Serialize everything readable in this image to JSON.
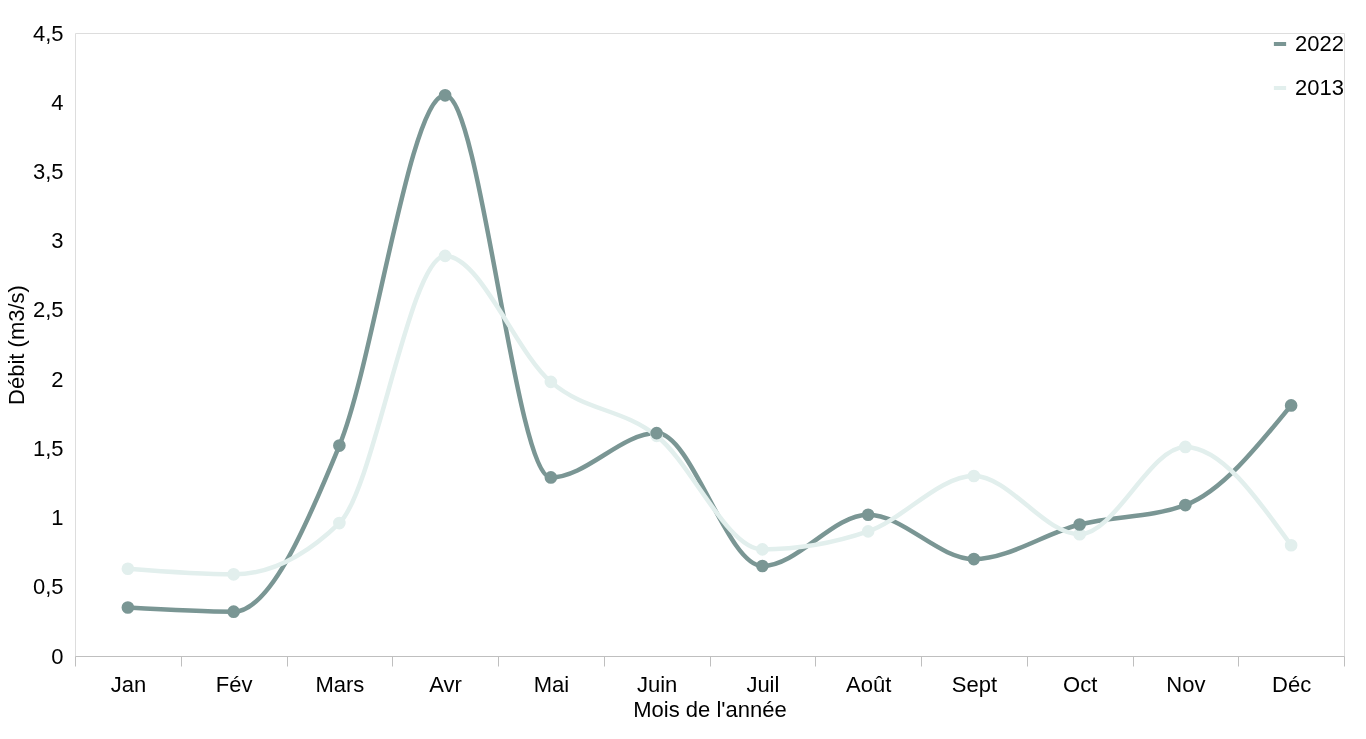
{
  "chart_data": {
    "type": "line",
    "xlabel": "Mois de l'année",
    "ylabel": "Débit (m3/s)",
    "categories": [
      "Jan",
      "Fév",
      "Mars",
      "Avr",
      "Mai",
      "Juin",
      "Juil",
      "Août",
      "Sept",
      "Oct",
      "Nov",
      "Déc"
    ],
    "series": [
      {
        "name": "2022",
        "color": "#7a9694",
        "values": [
          0.35,
          0.32,
          1.52,
          4.05,
          1.29,
          1.61,
          0.65,
          1.02,
          0.7,
          0.95,
          1.09,
          1.81
        ]
      },
      {
        "name": "2013",
        "color": "#e2efed",
        "values": [
          0.63,
          0.59,
          0.96,
          2.89,
          1.98,
          1.59,
          0.77,
          0.9,
          1.3,
          0.88,
          1.51,
          0.8
        ]
      }
    ],
    "ylim": [
      0,
      4.5
    ],
    "yticks": [
      0,
      {
        "value": 0.5,
        "label": "0,5"
      },
      1,
      {
        "value": 1.5,
        "label": "1,5"
      },
      2,
      {
        "value": 2.5,
        "label": "2,5"
      },
      3,
      {
        "value": 3.5,
        "label": "3,5"
      },
      4,
      {
        "value": 4.5,
        "label": "4,5"
      }
    ],
    "grid": false,
    "legend": "top right",
    "marker": "circle",
    "line_style": "solid"
  }
}
